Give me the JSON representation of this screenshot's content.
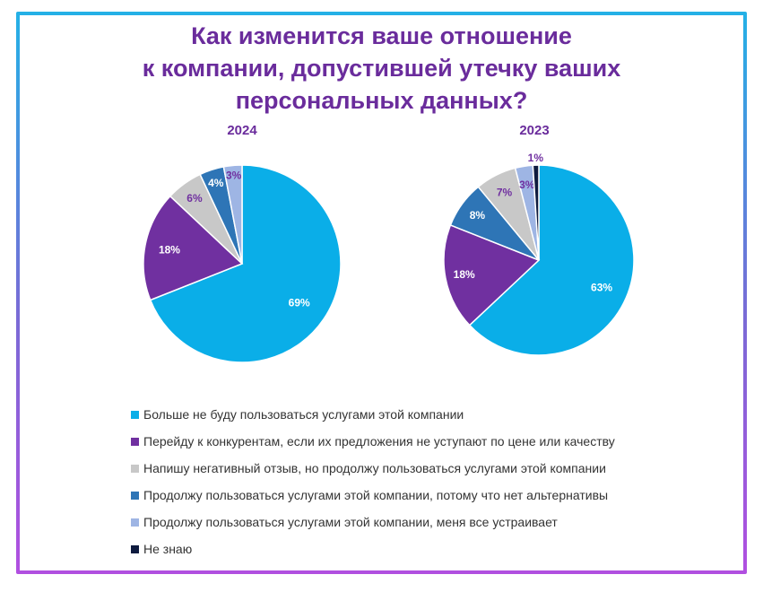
{
  "title_lines": [
    "Как изменится ваше отношение",
    "к компании, допустившей утечку ваших",
    "персональных данных?"
  ],
  "colors": [
    "#0aaee8",
    "#7030a0",
    "#c8c8c8",
    "#2e75b6",
    "#9eb5e4",
    "#0e1b3f"
  ],
  "legend": [
    "Больше не буду пользоваться услугами этой компании",
    "Перейду к конкурентам, если их предложения не уступают по цене или качеству",
    "Напишу негативный отзыв, но продолжу пользоваться услугами этой компании",
    "Продолжу пользоваться услугами этой компании, потому что нет альтернативы",
    "Продолжу пользоваться услугами этой компании, меня все устраивает",
    "Не знаю"
  ],
  "chart_data": [
    {
      "type": "pie",
      "title": "2024",
      "labels": [
        "Больше не буду пользоваться услугами этой компании",
        "Перейду к конкурентам, если их предложения не уступают по цене или качеству",
        "Напишу негативный отзыв, но продолжу пользоваться услугами этой компании",
        "Продолжу пользоваться услугами этой компании, потому что нет альтернативы",
        "Продолжу пользоваться услугами этой компании, меня все устраивает"
      ],
      "values": [
        69,
        18,
        6,
        4,
        3
      ],
      "value_labels": [
        "69%",
        "18%",
        "6%",
        "4%",
        "3%"
      ]
    },
    {
      "type": "pie",
      "title": "2023",
      "labels": [
        "Больше не буду пользоваться услугами этой компании",
        "Перейду к конкурентам, если их предложения не уступают по цене или качеству",
        "Напишу негативный отзыв, но продолжу пользоваться услугами этой компании",
        "Продолжу пользоваться услугами этой компании, потому что нет альтернативы",
        "Продолжу пользоваться услугами этой компании, меня все устраивает",
        "Не знаю"
      ],
      "values": [
        63,
        18,
        7,
        8,
        3,
        1
      ],
      "value_labels": [
        "63%",
        "18%",
        "7%",
        "8%",
        "3%",
        "1%"
      ]
    }
  ]
}
